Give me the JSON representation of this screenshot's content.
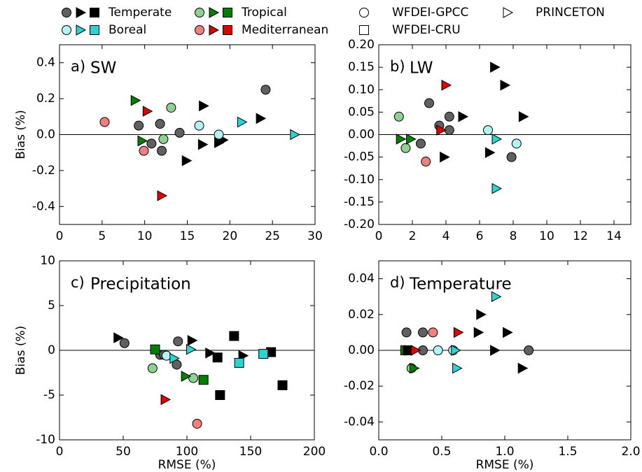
{
  "legend": {
    "regions": [
      {
        "name": "Temperate",
        "colors": [
          "#606060",
          "#000000",
          "#000000"
        ]
      },
      {
        "name": "Tropical",
        "colors": [
          "#90d090",
          "#007f00",
          "#007f00"
        ]
      },
      {
        "name": "Boreal",
        "colors": [
          "#b0f4f4",
          "#2ad4d4",
          "#2ad4d4"
        ]
      },
      {
        "name": "Mediterranean",
        "colors": [
          "#f08080",
          "#e00000",
          "#e00000"
        ]
      }
    ],
    "datasets": [
      {
        "name": "WFDEI-GPCC",
        "marker": "circle"
      },
      {
        "name": "PRINCETON",
        "marker": "triangle"
      },
      {
        "name": "WFDEI-CRU",
        "marker": "square"
      }
    ]
  },
  "chart_data": [
    {
      "type": "scatter",
      "label": "a)",
      "title": "SW",
      "ylabel": "Bias (%)",
      "xlim": [
        0,
        30
      ],
      "xticks": [
        0,
        5,
        10,
        15,
        20,
        25,
        30
      ],
      "ylim": [
        -0.5,
        0.5
      ],
      "yticks": [
        -0.4,
        -0.2,
        {
          "value": 0,
          "label": "0.0"
        },
        0.2,
        0.4
      ],
      "series": [
        {
          "marker": "circle",
          "color": "#606060",
          "x": [
            9.3,
            10.8,
            11.8,
            12.0,
            14.1,
            24.2
          ],
          "y": [
            0.05,
            -0.05,
            0.06,
            -0.09,
            0.01,
            0.25
          ]
        },
        {
          "marker": "triangle",
          "color": "#000000",
          "x": [
            16.9,
            16.8,
            14.9,
            23.6,
            18.7,
            19.2
          ],
          "y": [
            0.16,
            -0.055,
            -0.145,
            0.09,
            -0.045,
            -0.03
          ]
        },
        {
          "marker": "circle",
          "color": "#90d090",
          "x": [
            13.1,
            12.2
          ],
          "y": [
            0.15,
            -0.025
          ]
        },
        {
          "marker": "triangle",
          "color": "#007f00",
          "x": [
            8.9,
            9.7
          ],
          "y": [
            0.19,
            -0.035
          ]
        },
        {
          "marker": "circle",
          "color": "#b0f4f4",
          "x": [
            16.4,
            18.7
          ],
          "y": [
            0.05,
            0
          ]
        },
        {
          "marker": "triangle",
          "color": "#2ad4d4",
          "x": [
            21.4,
            27.6
          ],
          "y": [
            0.07,
            0
          ]
        },
        {
          "marker": "circle",
          "color": "#f08080",
          "x": [
            5.3,
            9.9
          ],
          "y": [
            0.07,
            -0.09
          ]
        },
        {
          "marker": "triangle",
          "color": "#e00000",
          "x": [
            10.3,
            12.0
          ],
          "y": [
            0.13,
            -0.34
          ]
        }
      ]
    },
    {
      "type": "scatter",
      "label": "b)",
      "title": "LW",
      "xlim": [
        0,
        15
      ],
      "xticks": [
        0,
        2,
        4,
        6,
        8,
        10,
        12,
        14
      ],
      "ylim": [
        -0.2,
        0.2
      ],
      "yticks": [
        {
          "value": -0.2,
          "label": "-0.20"
        },
        -0.15,
        {
          "value": -0.1,
          "label": "-0.10"
        },
        -0.05,
        {
          "value": 0,
          "label": "0.00"
        },
        0.05,
        {
          "value": 0.1,
          "label": "0.10"
        },
        0.15,
        {
          "value": 0.2,
          "label": "0.20"
        }
      ],
      "series": [
        {
          "marker": "circle",
          "color": "#606060",
          "x": [
            3.0,
            4.2,
            3.6,
            4.2,
            2.5,
            7.9
          ],
          "y": [
            0.07,
            0.04,
            0.02,
            0.01,
            -0.02,
            -0.05
          ]
        },
        {
          "marker": "triangle",
          "color": "#000000",
          "x": [
            6.9,
            7.5,
            8.6,
            5.0,
            3.9,
            6.6
          ],
          "y": [
            0.15,
            0.11,
            0.04,
            0.04,
            -0.05,
            -0.04
          ]
        },
        {
          "marker": "circle",
          "color": "#90d090",
          "x": [
            1.2,
            1.6
          ],
          "y": [
            0.04,
            -0.03
          ]
        },
        {
          "marker": "triangle",
          "color": "#007f00",
          "x": [
            1.3,
            1.9
          ],
          "y": [
            -0.01,
            -0.01
          ]
        },
        {
          "marker": "circle",
          "color": "#b0f4f4",
          "x": [
            6.5,
            8.2
          ],
          "y": [
            0.01,
            -0.02
          ]
        },
        {
          "marker": "triangle",
          "color": "#2ad4d4",
          "x": [
            7.0,
            7.0
          ],
          "y": [
            -0.01,
            -0.12
          ]
        },
        {
          "marker": "circle",
          "color": "#f08080",
          "x": [
            2.8
          ],
          "y": [
            -0.06
          ]
        },
        {
          "marker": "triangle",
          "color": "#e00000",
          "x": [
            4.0,
            3.7
          ],
          "y": [
            0.11,
            0.01
          ]
        }
      ]
    },
    {
      "type": "scatter",
      "label": "c)",
      "title": "Precipitation",
      "ylabel": "Bias (%)",
      "xlabel": "RMSE (%)",
      "xlim": [
        0,
        200
      ],
      "xticks": [
        0,
        50,
        100,
        150,
        200
      ],
      "ylim": [
        -10,
        10
      ],
      "yticks": [
        -10,
        -5,
        0,
        5,
        10
      ],
      "series": [
        {
          "marker": "circle",
          "color": "#606060",
          "x": [
            51,
            93,
            79,
            92,
            82
          ],
          "y": [
            0.8,
            1.0,
            -0.5,
            -1.6,
            -0.5
          ]
        },
        {
          "marker": "triangle",
          "color": "#000000",
          "x": [
            46,
            104,
            118,
            144
          ],
          "y": [
            1.4,
            1.1,
            -0.3,
            -0.6
          ]
        },
        {
          "marker": "square",
          "color": "#000000",
          "x": [
            124,
            126,
            137,
            166,
            175
          ],
          "y": [
            -0.8,
            -5.0,
            1.6,
            -0.2,
            -3.9
          ]
        },
        {
          "marker": "circle",
          "color": "#90d090",
          "x": [
            73,
            105
          ],
          "y": [
            -2.0,
            -3.1
          ]
        },
        {
          "marker": "triangle",
          "color": "#007f00",
          "x": [
            99
          ],
          "y": [
            -2.9
          ]
        },
        {
          "marker": "square",
          "color": "#007f00",
          "x": [
            75,
            113
          ],
          "y": [
            0.1,
            -3.3
          ]
        },
        {
          "marker": "circle",
          "color": "#b0f4f4",
          "x": [
            84
          ],
          "y": [
            -0.6
          ]
        },
        {
          "marker": "triangle",
          "color": "#2ad4d4",
          "x": [
            90,
            103
          ],
          "y": [
            -0.9,
            0.1
          ]
        },
        {
          "marker": "square",
          "color": "#2ad4d4",
          "x": [
            141,
            160
          ],
          "y": [
            -1.4,
            -0.4
          ]
        },
        {
          "marker": "circle",
          "color": "#f08080",
          "x": [
            108
          ],
          "y": [
            -8.2
          ]
        },
        {
          "marker": "triangle",
          "color": "#e00000",
          "x": [
            83
          ],
          "y": [
            -5.5
          ]
        }
      ]
    },
    {
      "type": "scatter",
      "label": "d)",
      "title": "Temperature",
      "xlabel": "RMSE (%)",
      "xlim": [
        0,
        2
      ],
      "xticks": [
        {
          "value": 0,
          "label": "0.0"
        },
        0.5,
        {
          "value": 1,
          "label": "1.0"
        },
        1.5,
        {
          "value": 2,
          "label": "2.0"
        }
      ],
      "ylim": [
        -0.05,
        0.05
      ],
      "yticks": [
        -0.04,
        -0.02,
        {
          "value": 0,
          "label": "0.00"
        },
        0.02,
        0.04
      ],
      "series": [
        {
          "marker": "circle",
          "color": "#606060",
          "x": [
            0.22,
            0.22,
            0.35,
            0.35,
            1.19
          ],
          "y": [
            0.01,
            0,
            0,
            0.01,
            0
          ]
        },
        {
          "marker": "square",
          "color": "#007f00",
          "x": [
            0.21
          ],
          "y": [
            0
          ]
        },
        {
          "marker": "square",
          "color": "#000000",
          "x": [
            0.23
          ],
          "y": [
            0
          ]
        },
        {
          "marker": "triangle",
          "color": "#000000",
          "x": [
            0.24,
            0.81,
            0.79,
            1.02,
            0.92,
            1.14
          ],
          "y": [
            0,
            0.02,
            0.01,
            0.01,
            0,
            -0.01
          ]
        },
        {
          "marker": "circle",
          "color": "#90d090",
          "x": [
            0.26
          ],
          "y": [
            -0.01
          ]
        },
        {
          "marker": "triangle",
          "color": "#007f00",
          "x": [
            0.28
          ],
          "y": [
            -0.01
          ]
        },
        {
          "marker": "circle",
          "color": "#b0f4f4",
          "x": [
            0.47,
            0.59
          ],
          "y": [
            0,
            0
          ]
        },
        {
          "marker": "triangle",
          "color": "#2ad4d4",
          "x": [
            0.61,
            0.93,
            0.62
          ],
          "y": [
            0,
            0.03,
            -0.01
          ]
        },
        {
          "marker": "circle",
          "color": "#f08080",
          "x": [
            0.43
          ],
          "y": [
            0.01
          ]
        },
        {
          "marker": "triangle",
          "color": "#e00000",
          "x": [
            0.29,
            0.63
          ],
          "y": [
            0,
            0.01
          ]
        }
      ]
    }
  ]
}
